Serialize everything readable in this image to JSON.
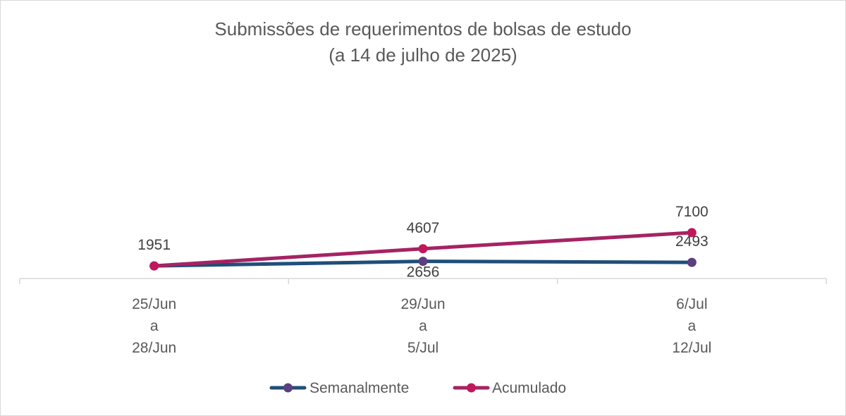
{
  "chart_data": {
    "type": "line",
    "title": [
      "Submissões de requerimentos de bolsas de estudo",
      "(a 14 de julho de 2025)"
    ],
    "categories": [
      [
        "25/Jun",
        "a",
        "28/Jun"
      ],
      [
        "29/Jun",
        "a",
        "5/Jul"
      ],
      [
        "6/Jul",
        "a",
        "12/Jul"
      ]
    ],
    "series": [
      {
        "name": "Semanalmente",
        "values": [
          1951,
          2656,
          2493
        ],
        "color": "#1f4e79",
        "marker_color": "#5b3f7e",
        "label_position": [
          "above",
          "below",
          "above"
        ]
      },
      {
        "name": "Acumulado",
        "values": [
          1951,
          4607,
          7100
        ],
        "color": "#a52363",
        "marker_color": "#c0185c",
        "label_position": [
          "none",
          "above",
          "above"
        ]
      }
    ],
    "ylim": [
      0,
      30000
    ],
    "grid": false,
    "legend": "bottom"
  }
}
